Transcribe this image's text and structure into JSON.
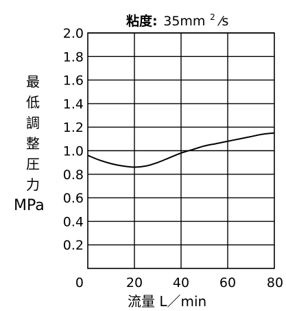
{
  "chart_data": {
    "type": "line",
    "title_prefix": "粘度:",
    "title_value": "35mm",
    "title_sup": "2",
    "title_suffix": "⁄s",
    "xlabel": "流量 L／min",
    "ylabel_chars": [
      "最",
      "低",
      "調",
      "整",
      "圧",
      "力"
    ],
    "ylabel_unit": "MPa",
    "xlim": [
      0,
      80
    ],
    "ylim": [
      0,
      2.0
    ],
    "x_ticks": [
      0,
      20,
      40,
      60,
      80
    ],
    "x_tick_labels": [
      "0",
      "20",
      "40",
      "60",
      "80"
    ],
    "y_ticks": [
      0.2,
      0.4,
      0.6,
      0.8,
      1.0,
      1.2,
      1.4,
      1.6,
      1.8,
      2.0
    ],
    "y_tick_labels": [
      "0.2",
      "0.4",
      "0.6",
      "0.8",
      "1.0",
      "1.2",
      "1.4",
      "1.6",
      "1.8",
      "2.0"
    ],
    "grid": true,
    "series": [
      {
        "x": [
          0,
          5,
          10,
          15,
          20,
          25,
          30,
          35,
          40,
          45,
          50,
          55,
          60,
          65,
          70,
          75,
          80
        ],
        "y": [
          0.96,
          0.92,
          0.89,
          0.87,
          0.86,
          0.87,
          0.9,
          0.94,
          0.98,
          1.01,
          1.04,
          1.06,
          1.08,
          1.1,
          1.12,
          1.14,
          1.15
        ]
      }
    ],
    "colors": {
      "line": "#000000",
      "grid": "#000000",
      "background": "#ffffff"
    }
  }
}
